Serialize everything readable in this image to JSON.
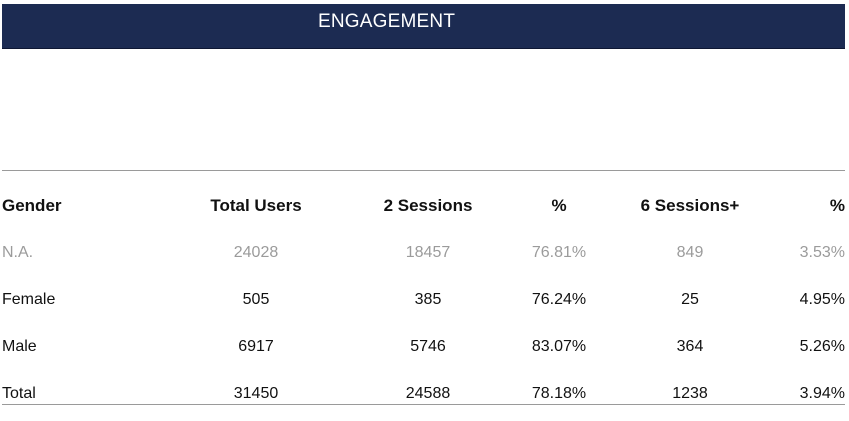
{
  "banner": {
    "title": "ENGAGEMENT"
  },
  "table": {
    "headers": [
      "Gender",
      "Total Users",
      "2 Sessions",
      "%",
      "6 Sessions+",
      "%"
    ],
    "rows": [
      [
        "N.A.",
        "24028",
        "18457",
        "76.81%",
        "849",
        "3.53%"
      ],
      [
        "Female",
        "505",
        "385",
        "76.24%",
        "25",
        "4.95%"
      ],
      [
        "Male",
        "6917",
        "5746",
        "83.07%",
        "364",
        "5.26%"
      ],
      [
        "Total",
        "31450",
        "24588",
        "78.18%",
        "1238",
        "3.94%"
      ]
    ]
  },
  "colors": {
    "banner_bg": "#1c2b52",
    "muted_row_text": "#9b9b9b",
    "rule": "#9a9a9a"
  }
}
